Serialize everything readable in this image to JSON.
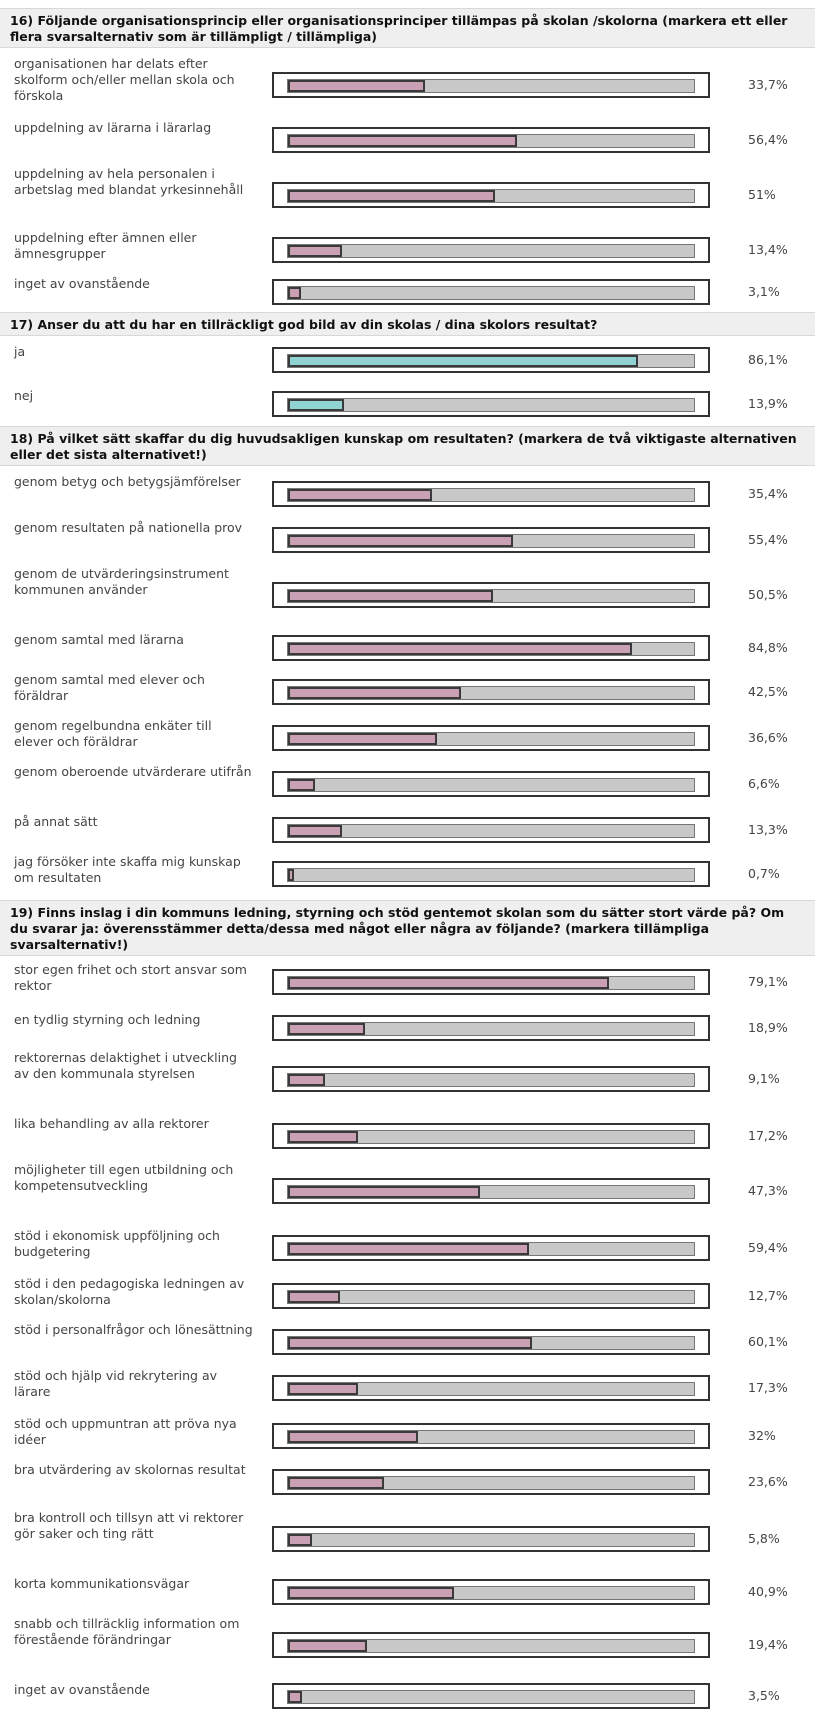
{
  "chart_data": [
    {
      "type": "bar",
      "title": "16) Följande organisationsprincip eller organisationsprinciper tillämpas på skolan /skolorna (markera ett eller flera svarsalternativ som är tillämpligt / tillämpliga)",
      "color": "#c9a0b4",
      "categories": [
        "organisationen har delats efter skolform och/eller mellan skola och förskola",
        "uppdelning av lärarna i lärarlag",
        "uppdelning av hela personalen i arbetslag med blandat yrkesinnehåll",
        "uppdelning efter ämnen eller ämnesgrupper",
        "inget av ovanstående"
      ],
      "values": [
        33.7,
        56.4,
        51,
        13.4,
        3.1
      ],
      "labels": [
        "33,7%",
        "56,4%",
        "51%",
        "13,4%",
        "3,1%"
      ]
    },
    {
      "type": "bar",
      "title": "17) Anser du att du har en tillräckligt god bild av din skolas / dina skolors resultat?",
      "color": "#8fd3d3",
      "categories": [
        "ja",
        "nej"
      ],
      "values": [
        86.1,
        13.9
      ],
      "labels": [
        "86,1%",
        "13,9%"
      ]
    },
    {
      "type": "bar",
      "title": "18) På vilket sätt skaffar du dig huvudsakligen kunskap om resultaten? (markera de två viktigaste alternativen eller det sista alternativet!)",
      "color": "#c9a0b4",
      "categories": [
        "genom betyg och betygsjämförelser",
        "genom resultaten på nationella prov",
        "genom de utvärderingsinstrument kommunen använder",
        "genom samtal med lärarna",
        "genom samtal med elever och föräldrar",
        "genom regelbundna enkäter till elever och föräldrar",
        "genom oberoende utvärderare utifrån",
        "på annat sätt",
        "jag försöker inte skaffa mig kunskap om resultaten"
      ],
      "values": [
        35.4,
        55.4,
        50.5,
        84.8,
        42.5,
        36.6,
        6.6,
        13.3,
        0.7
      ],
      "labels": [
        "35,4%",
        "55,4%",
        "50,5%",
        "84,8%",
        "42,5%",
        "36,6%",
        "6,6%",
        "13,3%",
        "0,7%"
      ]
    },
    {
      "type": "bar",
      "title": "19) Finns inslag i din kommuns ledning, styrning och stöd gentemot skolan som du sätter stort värde på? Om du svarar ja: överensstämmer detta/dessa med något eller några av följande? (markera tillämpliga svarsalternativ!)",
      "color": "#c9a0b4",
      "categories": [
        "stor egen frihet och stort ansvar som rektor",
        "en tydlig styrning och ledning",
        "rektorernas delaktighet i utveckling av den kommunala styrelsen",
        "lika behandling av alla rektorer",
        "möjligheter till egen utbildning och kompetensutveckling",
        "stöd i ekonomisk uppföljning och budgetering",
        "stöd i den pedagogiska ledningen av skolan/skolorna",
        "stöd i personalfrågor och lönesättning",
        "stöd och hjälp vid rekrytering av lärare",
        "stöd och uppmuntran att pröva nya idéer",
        "bra utvärdering av skolornas resultat",
        "bra kontroll och tillsyn att vi rektorer gör saker och ting rätt",
        "korta kommunikationsvägar",
        "snabb och tillräcklig information om förestående förändringar",
        "inget av ovanstående"
      ],
      "values": [
        79.1,
        18.9,
        9.1,
        17.2,
        47.3,
        59.4,
        12.7,
        60.1,
        17.3,
        32,
        23.6,
        5.8,
        40.9,
        19.4,
        3.5
      ],
      "labels": [
        "79,1%",
        "18,9%",
        "9,1%",
        "17,2%",
        "47,3%",
        "59,4%",
        "12,7%",
        "60,1%",
        "17,3%",
        "32%",
        "23,6%",
        "5,8%",
        "40,9%",
        "19,4%",
        "3,5%"
      ]
    }
  ]
}
